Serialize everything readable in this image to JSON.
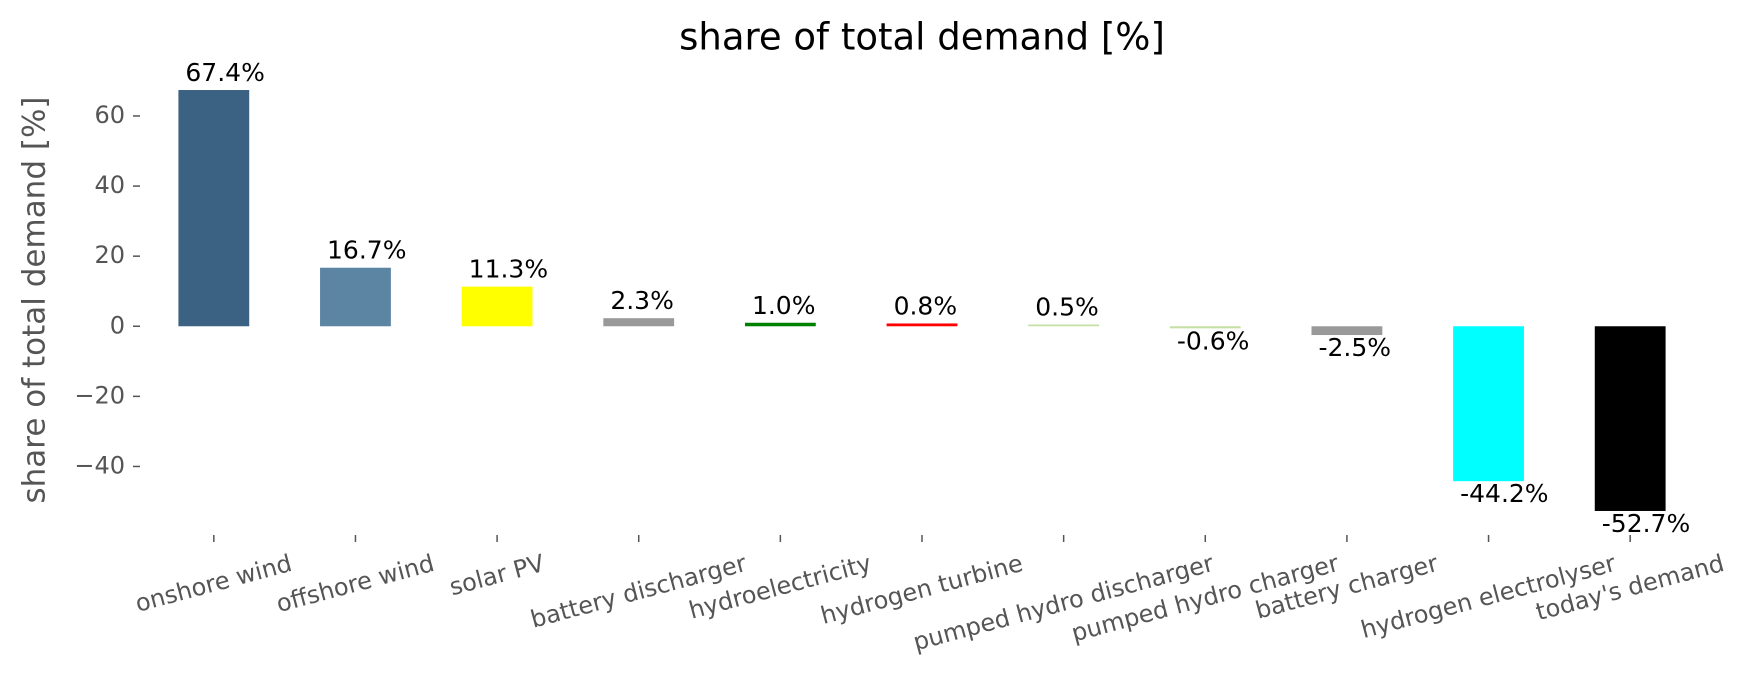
{
  "chart_data": {
    "type": "bar",
    "title": "share of total demand [%]",
    "y_label": "share of total demand [%]",
    "categories": [
      "onshore wind",
      "offshore wind",
      "solar PV",
      "battery discharger",
      "hydroelectricity",
      "hydrogen turbine",
      "pumped hydro discharger",
      "pumped hydro charger",
      "battery charger",
      "hydrogen electrolyser",
      "today's demand"
    ],
    "values": [
      67.4,
      16.7,
      11.3,
      2.3,
      1.0,
      0.8,
      0.5,
      -0.6,
      -2.5,
      -44.2,
      -52.7
    ],
    "value_labels": [
      "67.4%",
      "16.7%",
      "11.3%",
      "2.3%",
      "1.0%",
      "0.8%",
      "0.5%",
      "-0.6%",
      "-2.5%",
      "-44.2%",
      "-52.7%"
    ],
    "colors": [
      "#3b6183",
      "#5c84a3",
      "#ffff00",
      "#999999",
      "#008000",
      "#ff0000",
      "#c5e0a5",
      "#c5e0a5",
      "#999999",
      "#00ffff",
      "#000000"
    ],
    "ylim": [
      -58.7,
      73.4
    ],
    "yticks": [
      {
        "value": -40,
        "label": "−40"
      },
      {
        "value": -20,
        "label": "−20"
      },
      0,
      20,
      40,
      60
    ],
    "grid": false
  }
}
